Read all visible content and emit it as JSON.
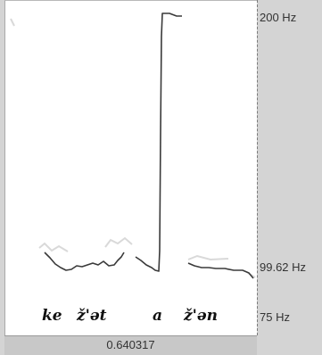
{
  "pitch_view": {
    "axis_labels": {
      "top": "200 Hz",
      "middle": "99.62 Hz",
      "bottom": "75 Hz"
    },
    "transcription": [
      "ke",
      "ž'ət",
      "a",
      "ž'ən"
    ],
    "cursor_time": "0.640317"
  },
  "colors": {
    "background": "#d4d4d4",
    "plot_background": "#ffffff",
    "pitch_line": "#3a3a3a",
    "faint_trace": "#d6d6d6"
  }
}
